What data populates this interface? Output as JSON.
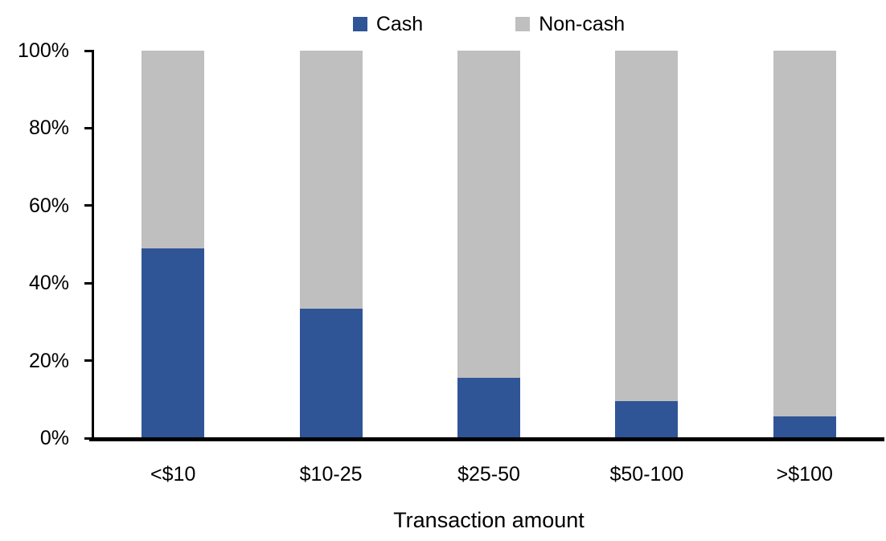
{
  "chart_data": {
    "type": "bar",
    "stacked": true,
    "title": "",
    "xlabel": "Transaction amount",
    "ylabel": "",
    "categories": [
      "<$10",
      "$10-25",
      "$25-50",
      "$50-100",
      ">$100"
    ],
    "series": [
      {
        "name": "Cash",
        "color": "#2F5597",
        "values": [
          49,
          33.5,
          15.5,
          9.5,
          5.5
        ]
      },
      {
        "name": "Non-cash",
        "color": "#BFBFBF",
        "values": [
          51,
          66.5,
          84.5,
          90.5,
          94.5
        ]
      }
    ],
    "units": "percent",
    "ylim": [
      0,
      100
    ],
    "yticks": [
      {
        "value": 0,
        "label": "0%"
      },
      {
        "value": 20,
        "label": "20%"
      },
      {
        "value": 40,
        "label": "40%"
      },
      {
        "value": 60,
        "label": "60%"
      },
      {
        "value": 80,
        "label": "80%"
      },
      {
        "value": 100,
        "label": "100%"
      }
    ],
    "legend_position": "top",
    "grid": false,
    "background": "#FFFFFF",
    "axis_color": "#000000"
  }
}
